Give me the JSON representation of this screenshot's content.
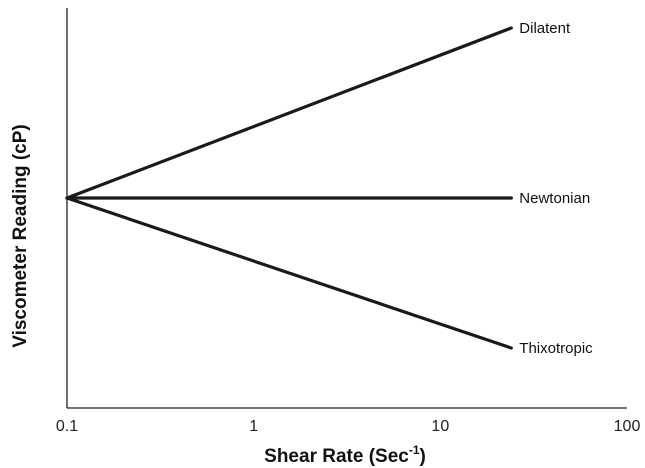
{
  "chart_data": {
    "type": "line",
    "title": "",
    "xlabel": "Shear Rate (Sec",
    "xlabel_sup": "-1",
    "xlabel_suffix": ")",
    "ylabel": "Viscometer Reading (cP)",
    "x_scale": "log",
    "xlim": [
      0.1,
      100
    ],
    "ylim": [
      0,
      10
    ],
    "x_ticks": [
      {
        "value": 0.1,
        "label": "0.1"
      },
      {
        "value": 1,
        "label": "1"
      },
      {
        "value": 10,
        "label": "10"
      },
      {
        "value": 100,
        "label": "100"
      }
    ],
    "y_ticks": [],
    "grid": false,
    "legend": "none",
    "line_color": "#1a1a1a",
    "series": [
      {
        "name": "Dilatent",
        "x": [
          0.1,
          24
        ],
        "y": [
          5.25,
          9.5
        ]
      },
      {
        "name": "Newtonian",
        "x": [
          0.1,
          24
        ],
        "y": [
          5.25,
          5.25
        ]
      },
      {
        "name": "Thixotropic",
        "x": [
          0.1,
          24
        ],
        "y": [
          5.25,
          1.5
        ]
      }
    ]
  }
}
